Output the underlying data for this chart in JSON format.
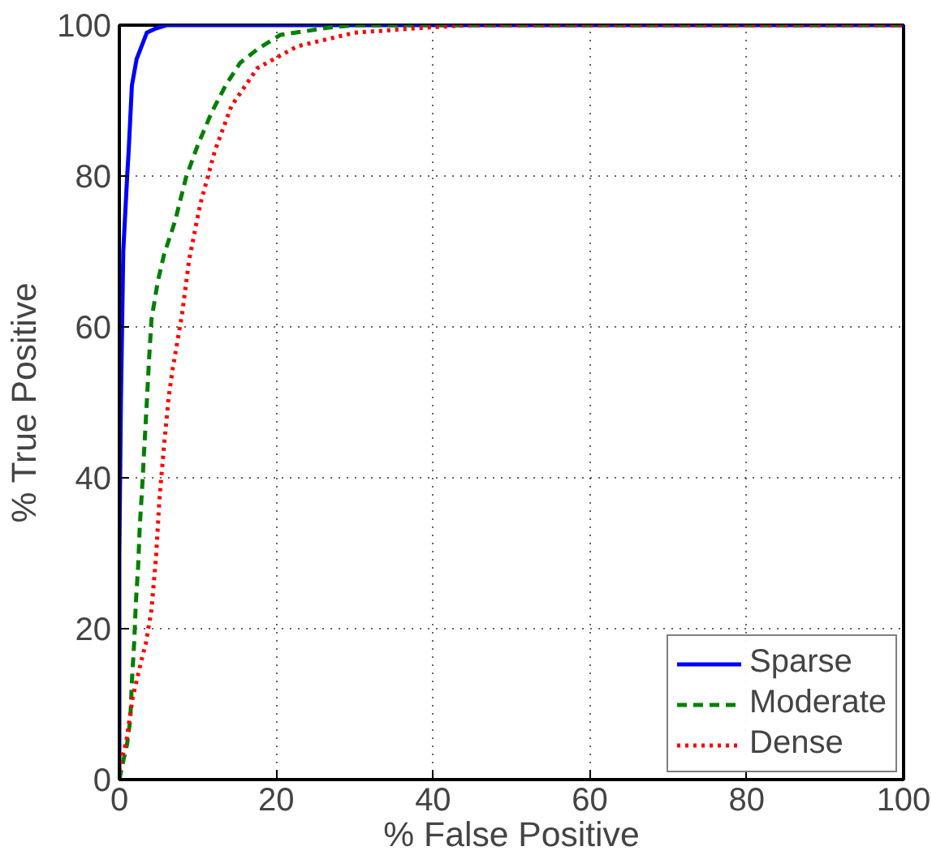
{
  "chart_data": {
    "type": "line",
    "xlabel": "% False Positive",
    "ylabel": "% True Positive",
    "xlim": [
      0,
      100
    ],
    "ylim": [
      0,
      100
    ],
    "xticks": [
      0,
      20,
      40,
      60,
      80,
      100
    ],
    "yticks": [
      0,
      20,
      40,
      60,
      80,
      100
    ],
    "grid": true,
    "legend": "bottom right",
    "series": [
      {
        "name": "Sparse",
        "color": "#0000ff",
        "line_style": "solid",
        "x": [
          0,
          0,
          0.2,
          0.5,
          1,
          1.2,
          1.6,
          2.2,
          3.5,
          4.5,
          6,
          20,
          50,
          100
        ],
        "values": [
          0,
          30,
          50,
          70,
          80,
          83.5,
          92,
          95.5,
          99,
          99.5,
          100,
          100,
          100,
          100
        ]
      },
      {
        "name": "Moderate",
        "color": "#008000",
        "line_style": "dashed",
        "x": [
          0,
          0.3,
          1,
          1.4,
          1.6,
          1.9,
          2.1,
          2.4,
          2.6,
          2.9,
          3.2,
          3.5,
          3.8,
          4.1,
          4.9,
          5.7,
          7.1,
          8.5,
          10,
          11.8,
          13.6,
          15.4,
          17.6,
          20.5,
          26.9,
          30,
          60,
          100
        ],
        "values": [
          0,
          1.5,
          4.8,
          8,
          13,
          18.3,
          23.3,
          28.3,
          33.5,
          38.5,
          44.3,
          50,
          55.9,
          61,
          66,
          69.6,
          74,
          79.8,
          84.1,
          88.5,
          92.1,
          95,
          96.8,
          98.7,
          99.7,
          100,
          100,
          100
        ]
      },
      {
        "name": "Dense",
        "color": "#ff0000",
        "line_style": "dotted",
        "x": [
          0,
          0,
          0.9,
          1.7,
          2.7,
          3.4,
          4.1,
          4.7,
          5.1,
          5.7,
          6.3,
          6.8,
          8,
          8.9,
          10.3,
          12.2,
          14.3,
          17.6,
          22.7,
          30,
          39.5,
          45,
          70,
          100
        ],
        "values": [
          0,
          1.5,
          5.1,
          10.9,
          15.3,
          18.2,
          22.5,
          29.8,
          37,
          44.3,
          50.8,
          54.4,
          61.7,
          68.9,
          76.2,
          83.4,
          89.3,
          94.3,
          97.2,
          99,
          99.7,
          100,
          100,
          100
        ]
      }
    ]
  }
}
